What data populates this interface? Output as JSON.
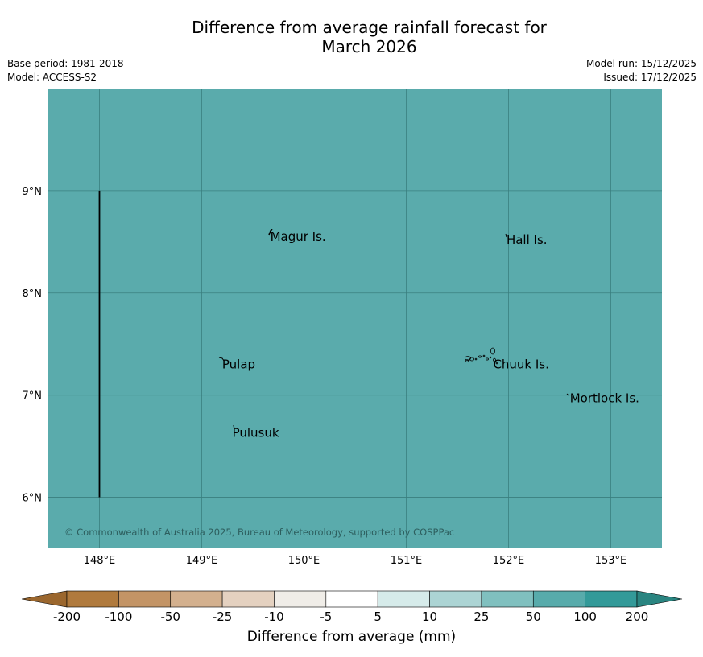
{
  "title_line1": "Difference from average rainfall forecast for",
  "title_line2": "March 2026",
  "base_period": "Base period: 1981-2018",
  "model": "Model: ACCESS-S2",
  "model_run": "Model run: 15/12/2025",
  "issued": "Issued: 17/12/2025",
  "copyright": "© Commonwealth of Australia 2025, Bureau of Meteorology, supported by COSPPac",
  "map": {
    "fill_color": "#5aabac",
    "grid_color": "#3a7f7f",
    "lon_range": [
      147.5,
      153.5
    ],
    "lat_range": [
      5.5,
      10.0
    ],
    "lon_ticks": [
      {
        "value": 148,
        "label": "148°E"
      },
      {
        "value": 149,
        "label": "149°E"
      },
      {
        "value": 150,
        "label": "150°E"
      },
      {
        "value": 151,
        "label": "151°E"
      },
      {
        "value": 152,
        "label": "152°E"
      },
      {
        "value": 153,
        "label": "153°E"
      }
    ],
    "lat_ticks": [
      {
        "value": 9,
        "label": "9°N"
      },
      {
        "value": 8,
        "label": "8°N"
      },
      {
        "value": 7,
        "label": "7°N"
      },
      {
        "value": 6,
        "label": "6°N"
      }
    ],
    "boundary_line": {
      "lon": 148,
      "lat_from": 6,
      "lat_to": 9
    },
    "places": [
      {
        "name": "Magur Is.",
        "lon": 149.67,
        "lat": 8.55
      },
      {
        "name": "Hall Is.",
        "lon": 151.98,
        "lat": 8.52
      },
      {
        "name": "Pulap",
        "lon": 149.2,
        "lat": 7.3
      },
      {
        "name": "Chuuk Is.",
        "lon": 151.85,
        "lat": 7.3
      },
      {
        "name": "Mortlock Is.",
        "lon": 152.6,
        "lat": 6.97
      },
      {
        "name": "Pulusuk",
        "lon": 149.3,
        "lat": 6.63
      }
    ]
  },
  "colorbar": {
    "label": "Difference from average (mm)",
    "ticks": [
      "-200",
      "-100",
      "-50",
      "-25",
      "-10",
      "-5",
      "5",
      "10",
      "25",
      "50",
      "100",
      "200"
    ],
    "colors": [
      "#b07a3d",
      "#c39466",
      "#d3b08e",
      "#e4d1c0",
      "#f0ede8",
      "#ffffff",
      "#d6ebea",
      "#acd4d4",
      "#80c0bf",
      "#58abab",
      "#339a99"
    ],
    "under_color": "#9b672e",
    "over_color": "#2a8581"
  }
}
